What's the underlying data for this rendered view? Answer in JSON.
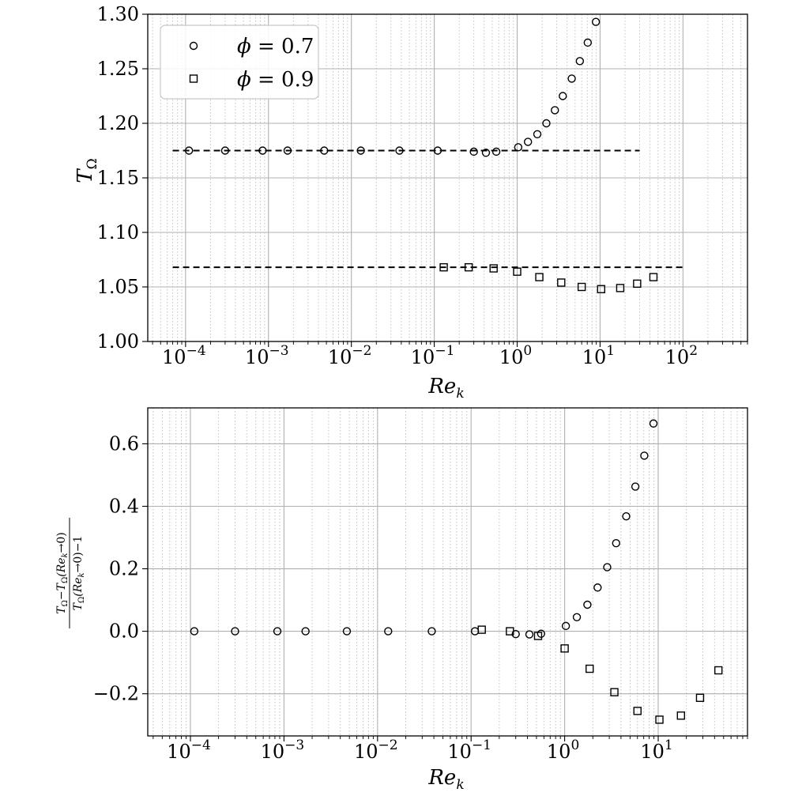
{
  "chart_data": [
    {
      "type": "scatter",
      "title": "",
      "xlabel": "Re_k",
      "ylabel": "T_Ω",
      "x_scale": "log",
      "xlim": [
        3.5e-05,
        600
      ],
      "ylim": [
        1.0,
        1.3
      ],
      "yticks": [
        1.0,
        1.05,
        1.1,
        1.15,
        1.2,
        1.25,
        1.3
      ],
      "ytick_labels": [
        "1.00",
        "1.05",
        "1.10",
        "1.15",
        "1.20",
        "1.25",
        "1.30"
      ],
      "xticks": [
        0.0001,
        0.001,
        0.01,
        0.1,
        1,
        10,
        100
      ],
      "xtick_bases": [
        "10",
        "10",
        "10",
        "10",
        "10",
        "10",
        "10"
      ],
      "xtick_exps": [
        "−4",
        "−3",
        "−2",
        "−1",
        "0",
        "1",
        "2"
      ],
      "grid": true,
      "legend_position": "top-left",
      "legend": [
        {
          "marker": "circle",
          "label_var": "ϕ",
          "label_rest": " = 0.7"
        },
        {
          "marker": "square",
          "label_var": "ϕ",
          "label_rest": " = 0.9"
        }
      ],
      "series": [
        {
          "name": "ϕ = 0.7",
          "marker": "circle",
          "x": [
            0.00011,
            0.0003,
            0.00085,
            0.0017,
            0.0047,
            0.013,
            0.038,
            0.11,
            0.3,
            0.42,
            0.56,
            1.03,
            1.35,
            1.75,
            2.25,
            2.85,
            3.55,
            4.55,
            5.7,
            7.1,
            8.9
          ],
          "y": [
            1.175,
            1.175,
            1.175,
            1.175,
            1.175,
            1.175,
            1.175,
            1.175,
            1.174,
            1.173,
            1.174,
            1.178,
            1.183,
            1.19,
            1.2,
            1.212,
            1.225,
            1.241,
            1.257,
            1.274,
            1.293
          ]
        },
        {
          "name": "ϕ = 0.9",
          "marker": "square",
          "x": [
            0.13,
            0.26,
            0.52,
            1.0,
            1.85,
            3.4,
            6.0,
            10.3,
            17.5,
            28.0,
            44.0
          ],
          "y": [
            1.068,
            1.068,
            1.067,
            1.064,
            1.059,
            1.054,
            1.05,
            1.048,
            1.049,
            1.053,
            1.059
          ]
        }
      ],
      "reference_lines": [
        {
          "y": 1.175,
          "x_range": [
            7e-05,
            30
          ],
          "style": "dashed"
        },
        {
          "y": 1.068,
          "x_range": [
            7e-05,
            100
          ],
          "style": "dashed"
        }
      ]
    },
    {
      "type": "scatter",
      "title": "",
      "xlabel": "Re_k",
      "ylabel": "(T_Ω − T_Ω(Re_k→0)) / (T_Ω(Re_k→0) − 1)",
      "x_scale": "log",
      "xlim": [
        3.5e-05,
        90
      ],
      "ylim": [
        -0.335,
        0.715
      ],
      "yticks": [
        -0.2,
        0.0,
        0.2,
        0.4,
        0.6
      ],
      "ytick_labels": [
        "−0.2",
        "0.0",
        "0.2",
        "0.4",
        "0.6"
      ],
      "xticks": [
        0.0001,
        0.001,
        0.01,
        0.1,
        1,
        10
      ],
      "xtick_bases": [
        "10",
        "10",
        "10",
        "10",
        "10",
        "10"
      ],
      "xtick_exps": [
        "−4",
        "−3",
        "−2",
        "−1",
        "0",
        "1"
      ],
      "grid": true,
      "series": [
        {
          "name": "ϕ = 0.7",
          "marker": "circle",
          "x": [
            0.00011,
            0.0003,
            0.00085,
            0.0017,
            0.0047,
            0.013,
            0.038,
            0.11,
            0.3,
            0.42,
            0.56,
            1.03,
            1.35,
            1.75,
            2.25,
            2.85,
            3.55,
            4.55,
            5.7,
            7.1,
            8.9
          ],
          "y": [
            0.0,
            0.0,
            0.0,
            0.0,
            0.0,
            0.0,
            0.0,
            0.0,
            -0.009,
            -0.01,
            -0.008,
            0.017,
            0.045,
            0.085,
            0.14,
            0.205,
            0.282,
            0.368,
            0.463,
            0.562,
            0.665
          ]
        },
        {
          "name": "ϕ = 0.9",
          "marker": "square",
          "x": [
            0.13,
            0.26,
            0.52,
            1.0,
            1.85,
            3.4,
            6.0,
            10.3,
            17.5,
            28.0,
            44.0
          ],
          "y": [
            0.005,
            0.0,
            -0.015,
            -0.055,
            -0.12,
            -0.195,
            -0.255,
            -0.283,
            -0.27,
            -0.213,
            -0.125
          ]
        }
      ]
    }
  ],
  "ylabel_bottom_parts": {
    "num_a": "T",
    "num_a_sub": "Ω",
    "num_minus": "−",
    "num_b": "T",
    "num_b_sub": "Ω",
    "num_b_arg": "(Re",
    "num_b_arg_sub": "k",
    "num_b_arg_rest": "→0)",
    "den_a": "T",
    "den_a_sub": "Ω",
    "den_arg": "(Re",
    "den_arg_sub": "k",
    "den_arg_rest": "→0)−1"
  },
  "axis_labels": {
    "top_ylabel_main": "T",
    "top_ylabel_sub": "Ω",
    "xlabel_main": "Re",
    "xlabel_sub": "k"
  }
}
